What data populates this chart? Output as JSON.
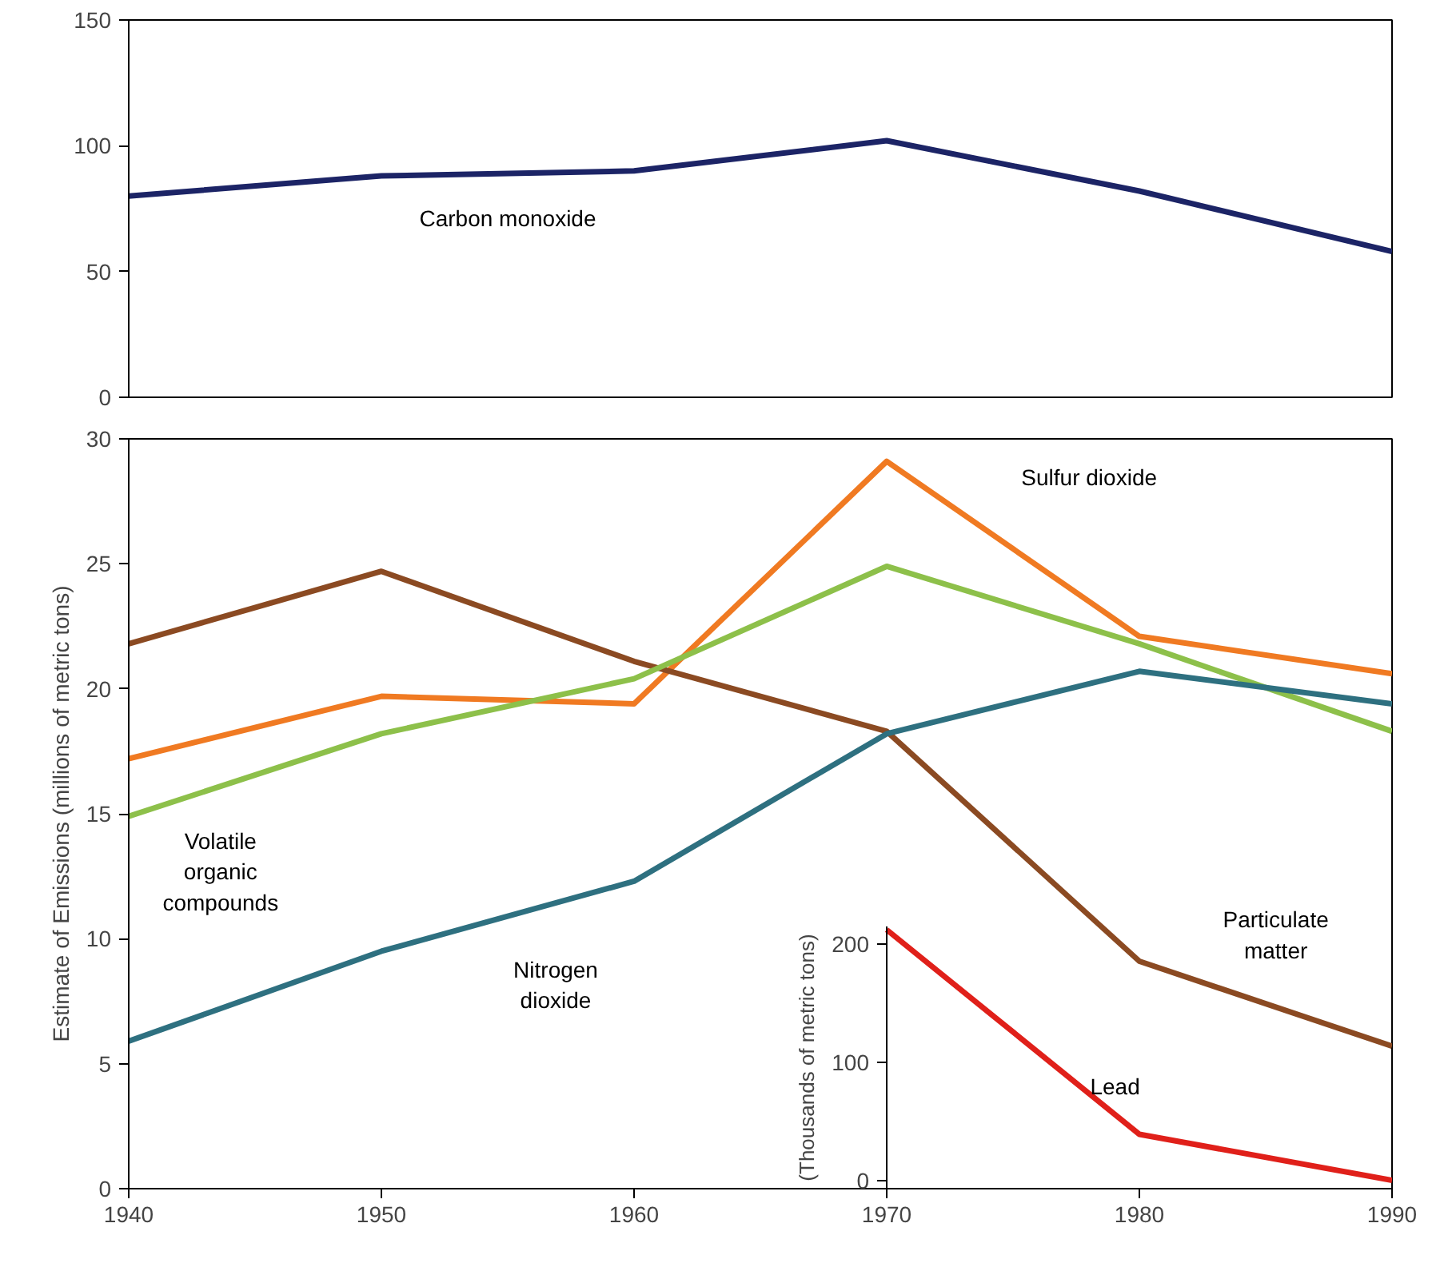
{
  "chart_data": [
    {
      "type": "line",
      "xlim": [
        1940,
        1990
      ],
      "ylim": [
        0,
        150
      ],
      "yticks": [
        0,
        50,
        100,
        150
      ],
      "tick_labels": "y",
      "x": [
        1940,
        1950,
        1960,
        1970,
        1980,
        1990
      ],
      "series": [
        {
          "name": "Carbon monoxide",
          "color": "#1c2466",
          "values": [
            80,
            88,
            90,
            102,
            82,
            58
          ]
        }
      ]
    },
    {
      "type": "line",
      "xlim": [
        1940,
        1990
      ],
      "xticks": [
        1940,
        1950,
        1960,
        1970,
        1980,
        1990
      ],
      "ylim": [
        0,
        30
      ],
      "yticks": [
        0,
        5,
        10,
        15,
        20,
        25,
        30
      ],
      "ylabel": "Estimate of Emissions (millions of metric tons)",
      "y2lim": [
        -7,
        215
      ],
      "y2ticks": [
        0,
        100,
        200
      ],
      "y2label": "(Thousands of metric tons)",
      "x": [
        1940,
        1950,
        1960,
        1970,
        1980,
        1990
      ],
      "series": [
        {
          "name": "Sulfur dioxide",
          "color": "#f07a22",
          "values": [
            17.2,
            19.7,
            19.4,
            29.1,
            22.1,
            20.6
          ]
        },
        {
          "name": "Particulate matter",
          "color": "#8b4a22",
          "values": [
            21.8,
            24.7,
            21.1,
            18.3,
            9.1,
            5.7
          ]
        },
        {
          "name": "Volatile organic compounds",
          "color": "#8dc04a",
          "values": [
            14.9,
            18.2,
            20.4,
            24.9,
            21.8,
            18.3
          ]
        },
        {
          "name": "Nitrogen dioxide",
          "color": "#2e7080",
          "values": [
            5.9,
            9.5,
            12.3,
            18.2,
            20.7,
            19.4
          ]
        },
        {
          "name": "Lead",
          "color": "#e0201a",
          "axis": "y2",
          "x": [
            1970,
            1980,
            1990
          ],
          "values": [
            212,
            39,
            0
          ]
        }
      ]
    }
  ]
}
